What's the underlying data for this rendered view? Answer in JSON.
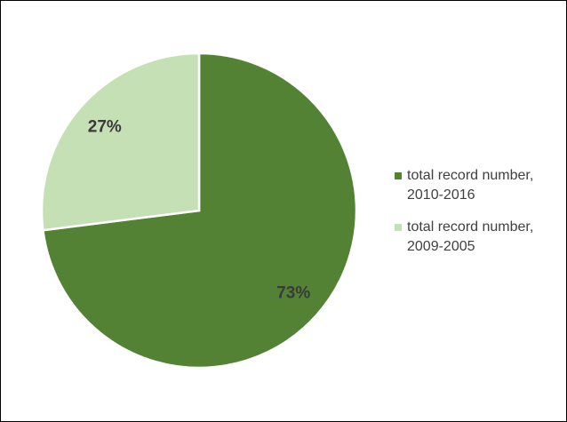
{
  "chart_data": {
    "type": "pie",
    "categories": [
      "total record number, 2010-2016",
      "total record number, 2009-2005"
    ],
    "values": [
      73,
      27
    ],
    "value_labels": [
      "73%",
      "27%"
    ],
    "colors": [
      "#548235",
      "#c5e0b4"
    ],
    "legend": "right"
  }
}
